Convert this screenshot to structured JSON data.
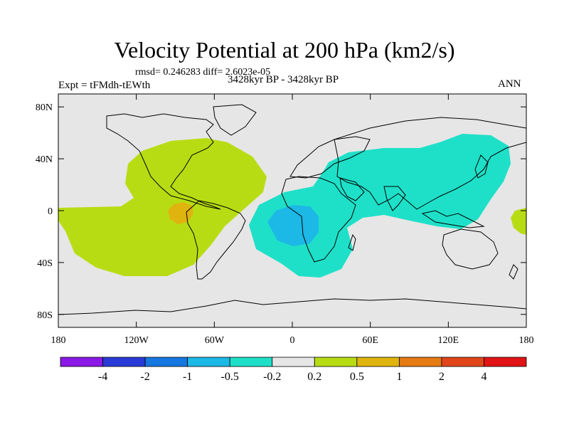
{
  "title": "Velocity Potential at 200 hPa (km2/s)",
  "stats_text": "rmsd= 0.246283 diff= 2.6023e-05",
  "left_label": "Expt = tFMdh-tEWth",
  "center_label": "3428kyr BP - 3428kyr BP",
  "right_label": "ANN",
  "map": {
    "projection": "cylindrical-equidistant",
    "lon_range": [
      -180,
      180
    ],
    "lat_range": [
      -90,
      90
    ],
    "lat_ticks": [
      {
        "value": 80,
        "label": "80N"
      },
      {
        "value": 40,
        "label": "40N"
      },
      {
        "value": 0,
        "label": "0"
      },
      {
        "value": -40,
        "label": "40S"
      },
      {
        "value": -80,
        "label": "80S"
      }
    ],
    "lon_ticks": [
      {
        "value": -180,
        "label": "180"
      },
      {
        "value": -120,
        "label": "120W"
      },
      {
        "value": -60,
        "label": "60W"
      },
      {
        "value": 0,
        "label": "0"
      },
      {
        "value": 60,
        "label": "60E"
      },
      {
        "value": 120,
        "label": "120E"
      },
      {
        "value": 180,
        "label": "180"
      }
    ]
  },
  "colorbar": {
    "levels": [
      "-4",
      "-2",
      "-1",
      "-0.5",
      "-0.2",
      "0.2",
      "0.5",
      "1",
      "2",
      "4"
    ],
    "colors": [
      "#8a19e6",
      "#2a3ad6",
      "#1677e0",
      "#1cb8e6",
      "#1ee0c8",
      "#e6e6e6",
      "#b8dc14",
      "#e0b40e",
      "#e67b14",
      "#e0461a",
      "#e01414"
    ]
  },
  "colors": {
    "ocean_bg": "#e6e6e6",
    "positive_02": "#b8dc14",
    "positive_05": "#e0b40e",
    "negative_02": "#1ee0c8",
    "negative_05": "#1cb8e6",
    "coast": "#000000"
  },
  "regions": [
    {
      "name": "pacific-americas-positive",
      "level": "0.2 to 0.5",
      "color_key": "positive_02"
    },
    {
      "name": "amazon-positive-core",
      "level": "0.5 to 1",
      "color_key": "positive_05"
    },
    {
      "name": "africa-asia-negative",
      "level": "-0.5 to -0.2",
      "color_key": "negative_02"
    },
    {
      "name": "south-atlantic-negative-core",
      "level": "-1 to -0.5",
      "color_key": "negative_05"
    },
    {
      "name": "dateline-positive",
      "level": "0.2 to 0.5",
      "color_key": "positive_02"
    }
  ]
}
